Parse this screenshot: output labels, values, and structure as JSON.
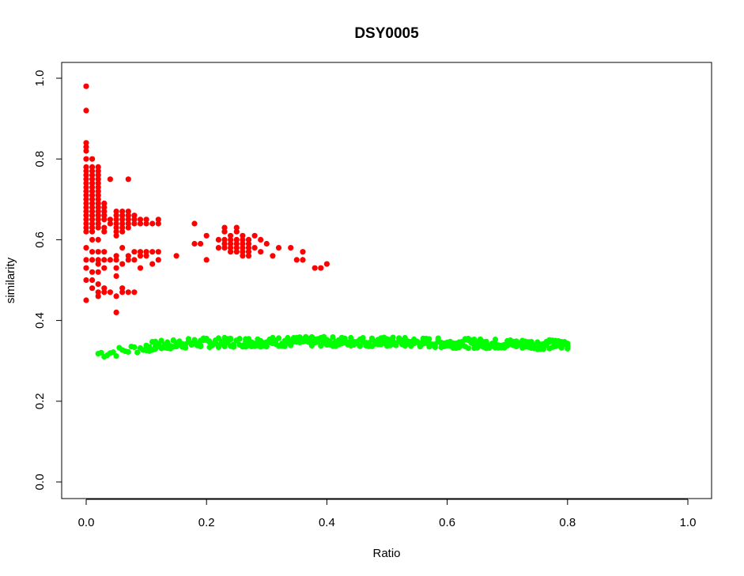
{
  "chart_data": {
    "type": "scatter",
    "title": "DSY0005",
    "xlabel": "Ratio",
    "ylabel": "similarity",
    "xlim": [
      0,
      1
    ],
    "ylim": [
      0,
      1
    ],
    "xticks": [
      0.0,
      0.2,
      0.4,
      0.6,
      0.8,
      1.0
    ],
    "xtick_labels": [
      "0.0",
      "0.2",
      "0.4",
      "0.6",
      "0.8",
      "1.0"
    ],
    "yticks": [
      0.0,
      0.2,
      0.4,
      0.6,
      0.8,
      1.0
    ],
    "ytick_labels": [
      "0.0",
      "0.2",
      "0.4",
      "0.6",
      "0.8",
      "1.0"
    ],
    "grid": false,
    "legend": "none",
    "series": [
      {
        "color": "#ff0000",
        "points": [
          [
            0,
            0.98
          ],
          [
            0,
            0.92
          ],
          [
            0,
            0.84
          ],
          [
            0,
            0.83
          ],
          [
            0,
            0.82
          ],
          [
            0,
            0.8
          ],
          [
            0,
            0.78
          ],
          [
            0,
            0.77
          ],
          [
            0,
            0.76
          ],
          [
            0,
            0.75
          ],
          [
            0,
            0.74
          ],
          [
            0,
            0.73
          ],
          [
            0,
            0.72
          ],
          [
            0,
            0.71
          ],
          [
            0,
            0.7
          ],
          [
            0,
            0.69
          ],
          [
            0,
            0.68
          ],
          [
            0,
            0.67
          ],
          [
            0,
            0.66
          ],
          [
            0,
            0.65
          ],
          [
            0,
            0.64
          ],
          [
            0,
            0.63
          ],
          [
            0,
            0.62
          ],
          [
            0,
            0.58
          ],
          [
            0,
            0.55
          ],
          [
            0,
            0.53
          ],
          [
            0,
            0.5
          ],
          [
            0,
            0.45
          ],
          [
            0.01,
            0.8
          ],
          [
            0.01,
            0.78
          ],
          [
            0.01,
            0.77
          ],
          [
            0.01,
            0.76
          ],
          [
            0.01,
            0.75
          ],
          [
            0.01,
            0.74
          ],
          [
            0.01,
            0.73
          ],
          [
            0.01,
            0.72
          ],
          [
            0.01,
            0.71
          ],
          [
            0.01,
            0.7
          ],
          [
            0.01,
            0.69
          ],
          [
            0.01,
            0.68
          ],
          [
            0.01,
            0.67
          ],
          [
            0.01,
            0.66
          ],
          [
            0.01,
            0.65
          ],
          [
            0.01,
            0.64
          ],
          [
            0.01,
            0.63
          ],
          [
            0.01,
            0.62
          ],
          [
            0.01,
            0.6
          ],
          [
            0.01,
            0.57
          ],
          [
            0.01,
            0.55
          ],
          [
            0.01,
            0.52
          ],
          [
            0.01,
            0.5
          ],
          [
            0.01,
            0.48
          ],
          [
            0.02,
            0.78
          ],
          [
            0.02,
            0.77
          ],
          [
            0.02,
            0.76
          ],
          [
            0.02,
            0.75
          ],
          [
            0.02,
            0.74
          ],
          [
            0.02,
            0.73
          ],
          [
            0.02,
            0.72
          ],
          [
            0.02,
            0.71
          ],
          [
            0.02,
            0.7
          ],
          [
            0.02,
            0.69
          ],
          [
            0.02,
            0.68
          ],
          [
            0.02,
            0.67
          ],
          [
            0.02,
            0.66
          ],
          [
            0.02,
            0.65
          ],
          [
            0.02,
            0.64
          ],
          [
            0.02,
            0.63
          ],
          [
            0.02,
            0.6
          ],
          [
            0.02,
            0.57
          ],
          [
            0.02,
            0.55
          ],
          [
            0.02,
            0.54
          ],
          [
            0.02,
            0.52
          ],
          [
            0.02,
            0.49
          ],
          [
            0.02,
            0.47
          ],
          [
            0.02,
            0.46
          ],
          [
            0.03,
            0.69
          ],
          [
            0.03,
            0.68
          ],
          [
            0.03,
            0.67
          ],
          [
            0.03,
            0.66
          ],
          [
            0.03,
            0.65
          ],
          [
            0.03,
            0.63
          ],
          [
            0.03,
            0.62
          ],
          [
            0.03,
            0.57
          ],
          [
            0.03,
            0.55
          ],
          [
            0.03,
            0.53
          ],
          [
            0.03,
            0.48
          ],
          [
            0.03,
            0.47
          ],
          [
            0.04,
            0.75
          ],
          [
            0.04,
            0.65
          ],
          [
            0.04,
            0.64
          ],
          [
            0.04,
            0.55
          ],
          [
            0.04,
            0.47
          ],
          [
            0.05,
            0.67
          ],
          [
            0.05,
            0.66
          ],
          [
            0.05,
            0.65
          ],
          [
            0.05,
            0.64
          ],
          [
            0.05,
            0.63
          ],
          [
            0.05,
            0.62
          ],
          [
            0.05,
            0.61
          ],
          [
            0.05,
            0.56
          ],
          [
            0.05,
            0.55
          ],
          [
            0.05,
            0.53
          ],
          [
            0.05,
            0.51
          ],
          [
            0.05,
            0.46
          ],
          [
            0.05,
            0.42
          ],
          [
            0.06,
            0.67
          ],
          [
            0.06,
            0.66
          ],
          [
            0.06,
            0.65
          ],
          [
            0.06,
            0.64
          ],
          [
            0.06,
            0.63
          ],
          [
            0.06,
            0.62
          ],
          [
            0.06,
            0.58
          ],
          [
            0.06,
            0.54
          ],
          [
            0.06,
            0.48
          ],
          [
            0.06,
            0.47
          ],
          [
            0.07,
            0.75
          ],
          [
            0.07,
            0.67
          ],
          [
            0.07,
            0.66
          ],
          [
            0.07,
            0.65
          ],
          [
            0.07,
            0.64
          ],
          [
            0.07,
            0.63
          ],
          [
            0.07,
            0.56
          ],
          [
            0.07,
            0.55
          ],
          [
            0.07,
            0.47
          ],
          [
            0.08,
            0.66
          ],
          [
            0.08,
            0.65
          ],
          [
            0.08,
            0.64
          ],
          [
            0.08,
            0.57
          ],
          [
            0.08,
            0.55
          ],
          [
            0.08,
            0.47
          ],
          [
            0.09,
            0.65
          ],
          [
            0.09,
            0.64
          ],
          [
            0.09,
            0.57
          ],
          [
            0.09,
            0.56
          ],
          [
            0.09,
            0.53
          ],
          [
            0.1,
            0.65
          ],
          [
            0.1,
            0.64
          ],
          [
            0.1,
            0.57
          ],
          [
            0.1,
            0.56
          ],
          [
            0.11,
            0.64
          ],
          [
            0.11,
            0.57
          ],
          [
            0.11,
            0.54
          ],
          [
            0.12,
            0.65
          ],
          [
            0.12,
            0.64
          ],
          [
            0.12,
            0.57
          ],
          [
            0.12,
            0.55
          ],
          [
            0.15,
            0.56
          ],
          [
            0.18,
            0.64
          ],
          [
            0.18,
            0.59
          ],
          [
            0.19,
            0.59
          ],
          [
            0.2,
            0.61
          ],
          [
            0.2,
            0.55
          ],
          [
            0.22,
            0.6
          ],
          [
            0.22,
            0.58
          ],
          [
            0.23,
            0.63
          ],
          [
            0.23,
            0.62
          ],
          [
            0.23,
            0.6
          ],
          [
            0.23,
            0.59
          ],
          [
            0.23,
            0.58
          ],
          [
            0.24,
            0.61
          ],
          [
            0.24,
            0.6
          ],
          [
            0.24,
            0.59
          ],
          [
            0.24,
            0.58
          ],
          [
            0.24,
            0.57
          ],
          [
            0.25,
            0.63
          ],
          [
            0.25,
            0.62
          ],
          [
            0.25,
            0.6
          ],
          [
            0.25,
            0.59
          ],
          [
            0.25,
            0.58
          ],
          [
            0.25,
            0.57
          ],
          [
            0.26,
            0.61
          ],
          [
            0.26,
            0.6
          ],
          [
            0.26,
            0.59
          ],
          [
            0.26,
            0.58
          ],
          [
            0.26,
            0.57
          ],
          [
            0.26,
            0.56
          ],
          [
            0.27,
            0.6
          ],
          [
            0.27,
            0.59
          ],
          [
            0.27,
            0.58
          ],
          [
            0.27,
            0.57
          ],
          [
            0.27,
            0.56
          ],
          [
            0.28,
            0.61
          ],
          [
            0.28,
            0.58
          ],
          [
            0.29,
            0.6
          ],
          [
            0.29,
            0.57
          ],
          [
            0.3,
            0.59
          ],
          [
            0.31,
            0.56
          ],
          [
            0.32,
            0.58
          ],
          [
            0.34,
            0.58
          ],
          [
            0.35,
            0.55
          ],
          [
            0.36,
            0.57
          ],
          [
            0.36,
            0.55
          ],
          [
            0.38,
            0.53
          ],
          [
            0.39,
            0.53
          ],
          [
            0.4,
            0.54
          ]
        ]
      },
      {
        "color": "#00ff00",
        "generated": {
          "x_start": 0.02,
          "x_end": 0.8,
          "x_step": 0.005,
          "y_profile": [
            [
              0.02,
              0.318
            ],
            [
              0.05,
              0.322
            ],
            [
              0.08,
              0.33
            ],
            [
              0.12,
              0.338
            ],
            [
              0.16,
              0.343
            ],
            [
              0.2,
              0.345
            ],
            [
              0.3,
              0.347
            ],
            [
              0.4,
              0.348
            ],
            [
              0.5,
              0.347
            ],
            [
              0.6,
              0.344
            ],
            [
              0.7,
              0.342
            ],
            [
              0.8,
              0.34
            ]
          ],
          "y_spread": 0.012
        }
      }
    ]
  }
}
